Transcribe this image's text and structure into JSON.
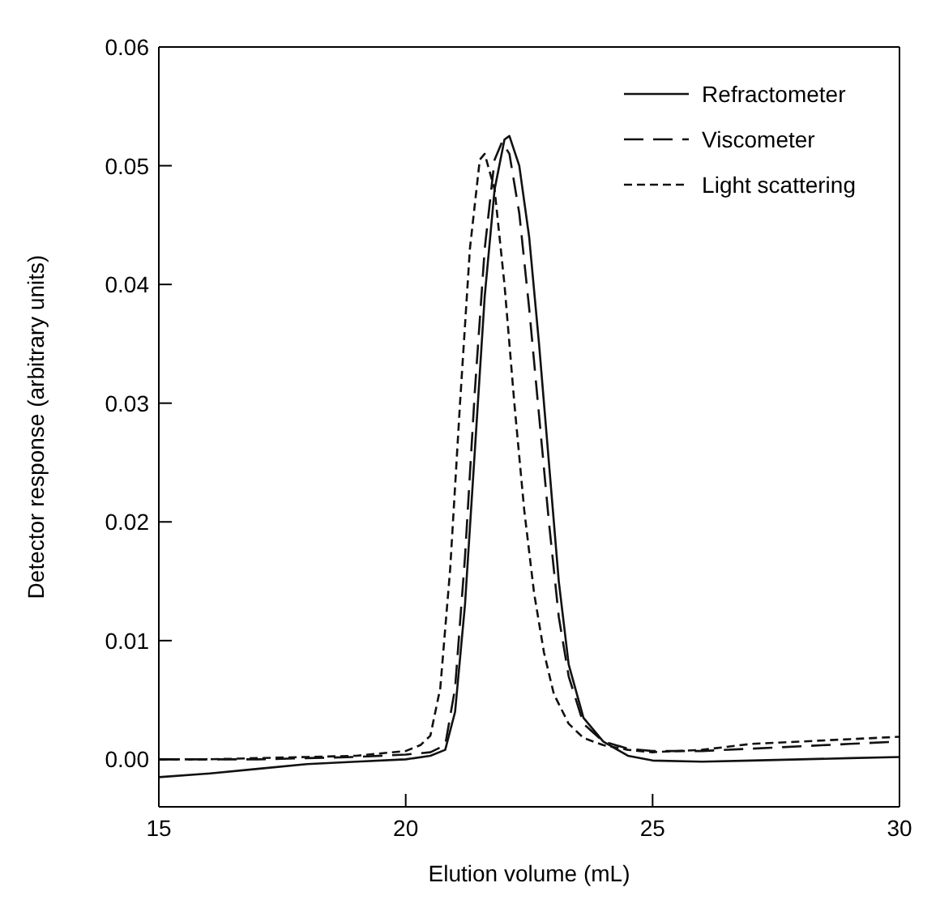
{
  "chart_data": {
    "type": "line",
    "xlabel": "Elution volume  (mL)",
    "ylabel": "Detector response (arbitrary units)",
    "xlim": [
      15,
      30
    ],
    "xticks": [
      15,
      20,
      25,
      30
    ],
    "ylim": [
      -0.004,
      0.06
    ],
    "yticks": [
      {
        "value": 0,
        "label": "0.00"
      },
      {
        "value": 0.01,
        "label": "0.01"
      },
      {
        "value": 0.02,
        "label": "0.02"
      },
      {
        "value": 0.03,
        "label": "0.03"
      },
      {
        "value": 0.04,
        "label": "0.04"
      },
      {
        "value": 0.05,
        "label": "0.05"
      },
      {
        "value": 0.06,
        "label": "0.06"
      }
    ],
    "legend": "top right",
    "marker": "none",
    "series": [
      {
        "name": "Refractometer",
        "color": "#111111",
        "line_style": "solid",
        "x": [
          15,
          16,
          17,
          18,
          19,
          20,
          20.5,
          20.8,
          21,
          21.2,
          21.4,
          21.6,
          21.8,
          22,
          22.1,
          22.3,
          22.5,
          22.7,
          22.9,
          23.1,
          23.3,
          23.6,
          24,
          24.5,
          25,
          26,
          27,
          28,
          29,
          30
        ],
        "values": [
          -0.0015,
          -0.0012,
          -0.0008,
          -0.0004,
          -0.0002,
          0,
          0.0003,
          0.0008,
          0.004,
          0.013,
          0.026,
          0.039,
          0.048,
          0.0522,
          0.0525,
          0.05,
          0.044,
          0.035,
          0.025,
          0.015,
          0.008,
          0.0035,
          0.0015,
          0.0003,
          -0.0001,
          -0.0002,
          -0.0001,
          0,
          0.0001,
          0.0002
        ]
      },
      {
        "name": "Viscometer",
        "color": "#111111",
        "line_style": "dashed",
        "x": [
          15,
          16,
          17,
          18,
          19,
          20,
          20.5,
          20.8,
          21,
          21.2,
          21.4,
          21.6,
          21.8,
          21.95,
          22.1,
          22.3,
          22.5,
          22.7,
          22.9,
          23.1,
          23.3,
          23.6,
          24,
          24.5,
          25,
          26,
          27,
          28,
          29,
          30
        ],
        "values": [
          0,
          0,
          0,
          0.0001,
          0.0002,
          0.0004,
          0.0006,
          0.0012,
          0.006,
          0.017,
          0.031,
          0.043,
          0.0505,
          0.052,
          0.051,
          0.046,
          0.038,
          0.029,
          0.02,
          0.012,
          0.007,
          0.003,
          0.0015,
          0.0009,
          0.0007,
          0.0007,
          0.0009,
          0.0011,
          0.0013,
          0.0015
        ]
      },
      {
        "name": "Light scattering",
        "color": "#111111",
        "line_style": "dotted",
        "x": [
          15,
          16,
          17,
          18,
          19,
          20,
          20.3,
          20.5,
          20.7,
          20.9,
          21.1,
          21.3,
          21.5,
          21.6,
          21.8,
          22,
          22.2,
          22.4,
          22.6,
          22.8,
          23,
          23.3,
          23.6,
          24,
          24.5,
          25,
          26,
          27,
          28,
          29,
          30
        ],
        "values": [
          0,
          0,
          0.0001,
          0.0002,
          0.0003,
          0.0007,
          0.0012,
          0.002,
          0.006,
          0.016,
          0.03,
          0.043,
          0.0505,
          0.051,
          0.048,
          0.04,
          0.03,
          0.021,
          0.014,
          0.009,
          0.0055,
          0.003,
          0.0018,
          0.0012,
          0.0008,
          0.0006,
          0.0008,
          0.0013,
          0.0015,
          0.0017,
          0.0019
        ]
      }
    ]
  }
}
